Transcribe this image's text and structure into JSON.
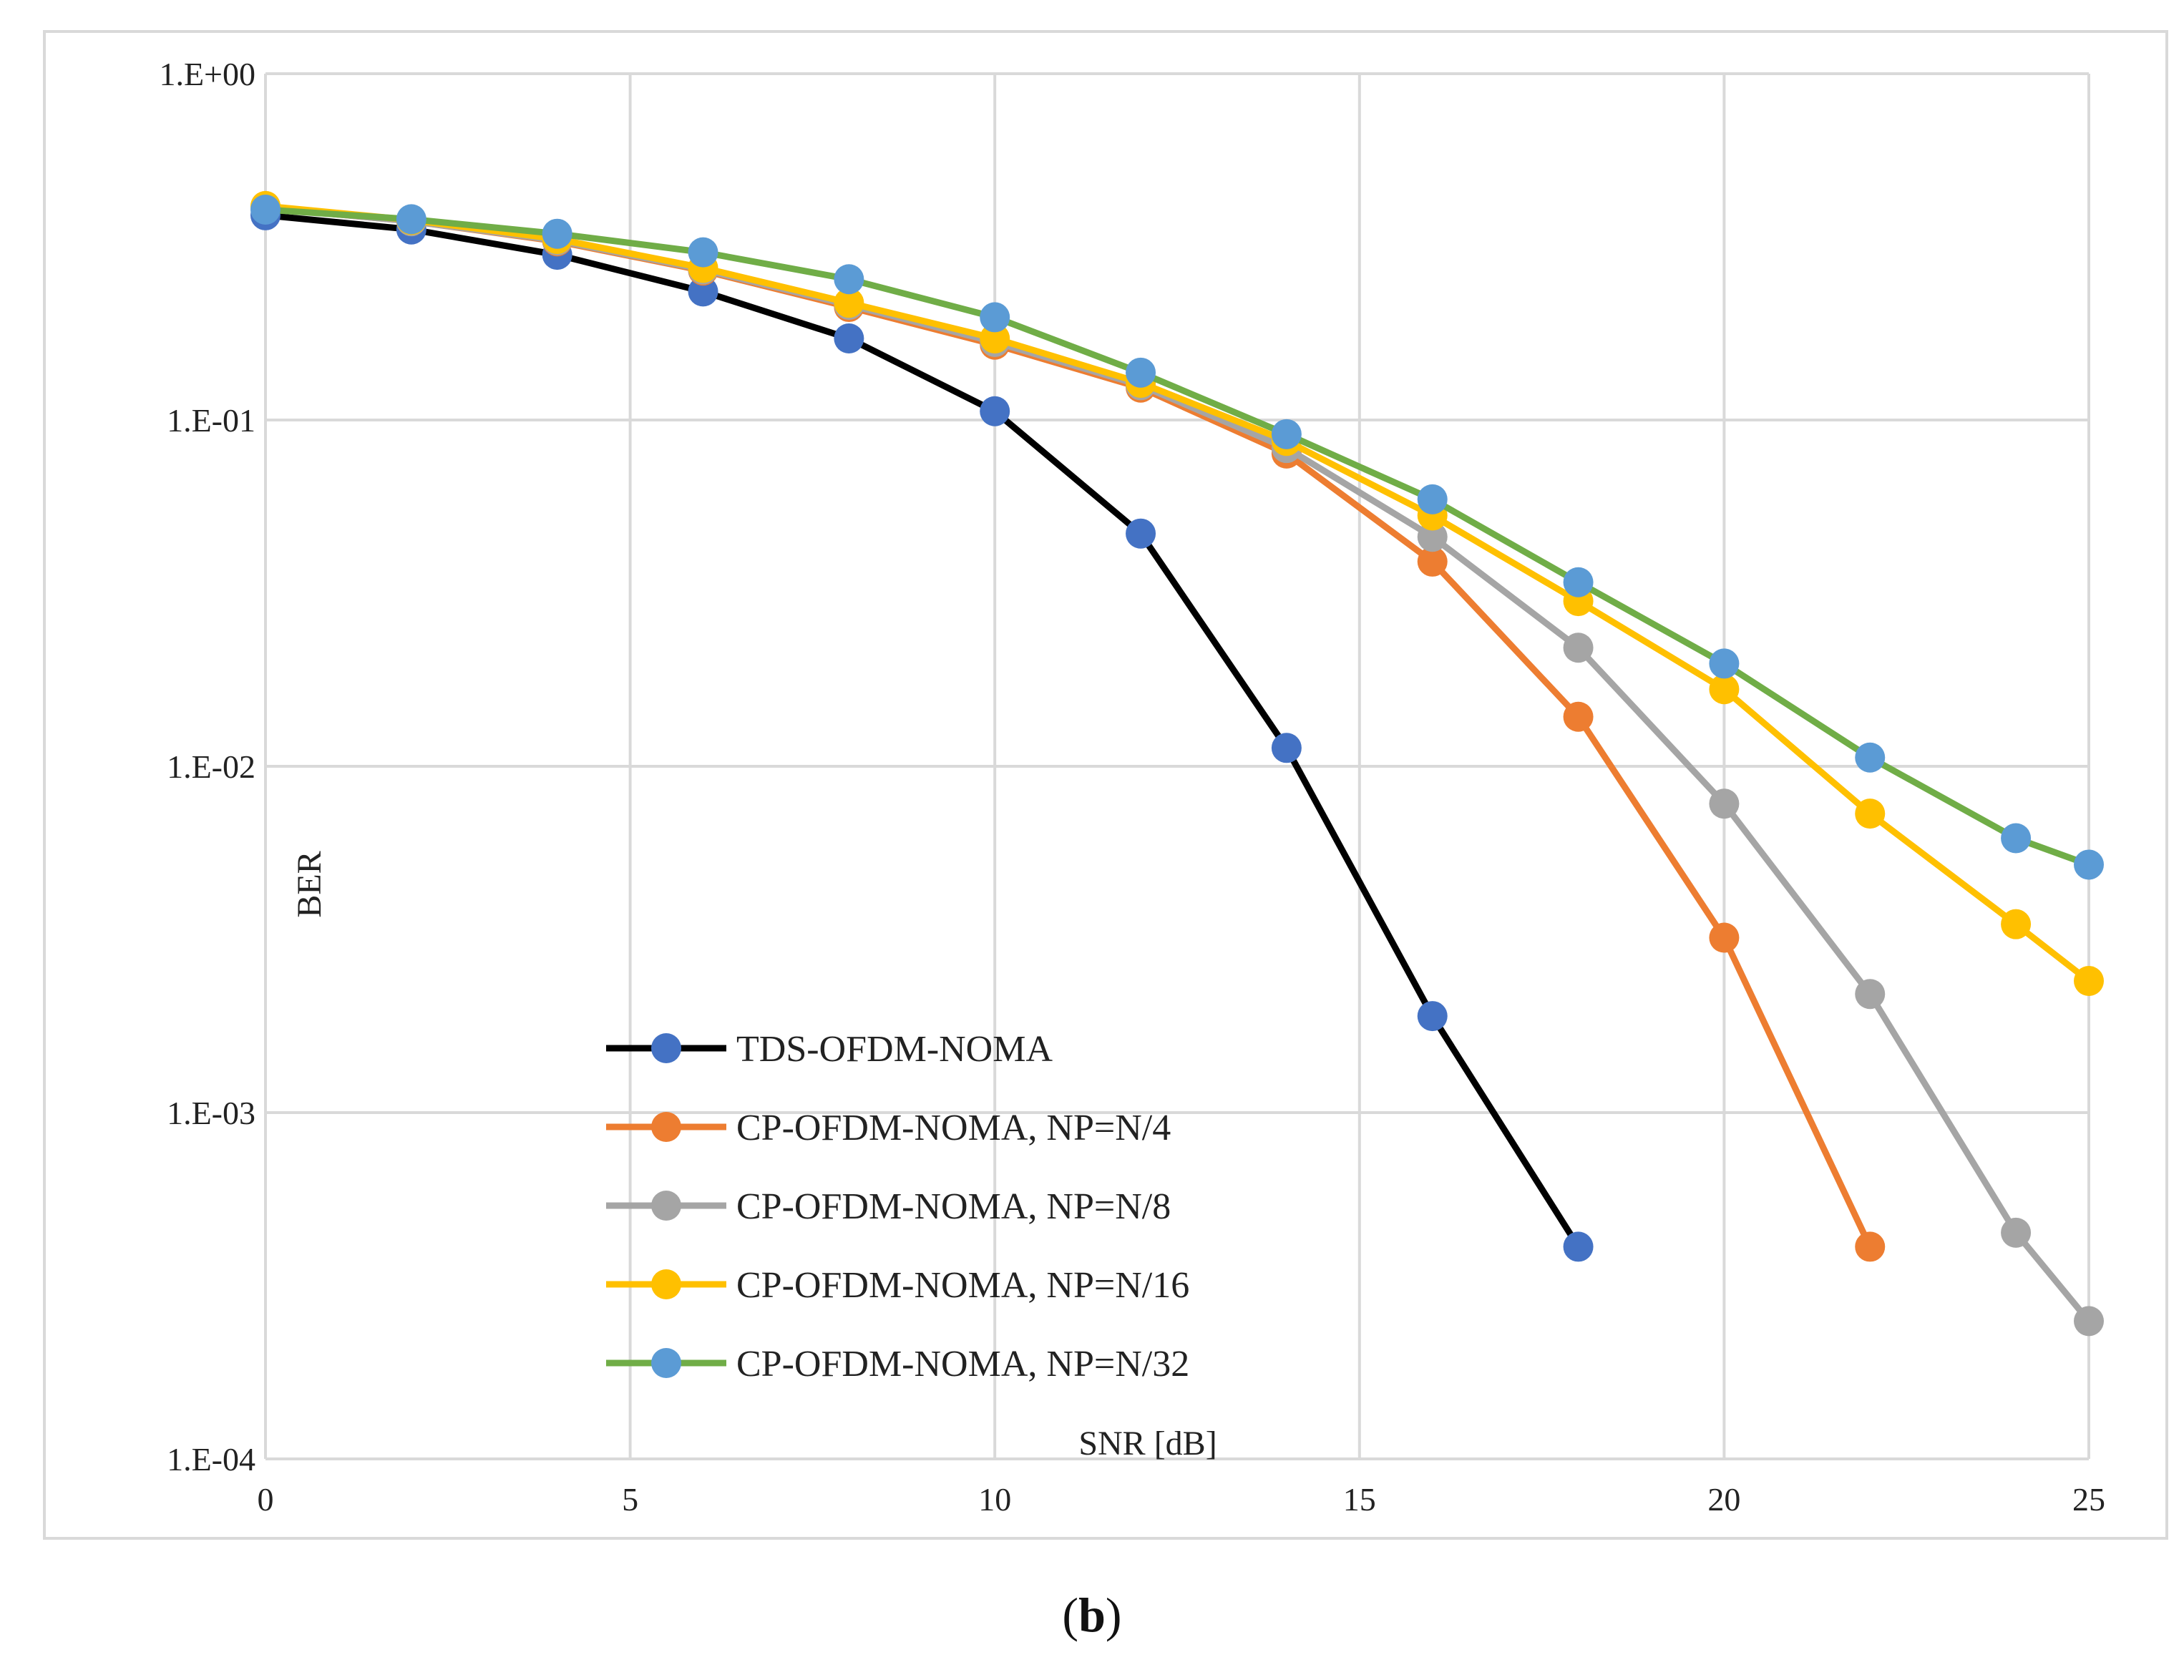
{
  "caption": {
    "open": "(",
    "letter": "b",
    "close": ")"
  },
  "chart_data": {
    "type": "line",
    "title": "",
    "xlabel": "SNR [dB]",
    "ylabel": "BER",
    "xlim": [
      0,
      25
    ],
    "ylim": [
      0.0001,
      1
    ],
    "yscale": "log",
    "grid": true,
    "legend_position": "bottom-center",
    "x_ticks": [
      0,
      5,
      10,
      15,
      20,
      25
    ],
    "x_tick_labels": [
      "0",
      "5",
      "10",
      "15",
      "20",
      "25"
    ],
    "y_ticks": [
      1,
      0.1,
      0.01,
      0.001,
      0.0001
    ],
    "y_tick_labels": [
      "1.E+00",
      "1.E-01",
      "1.E-02",
      "1.E-03",
      "1.E-04"
    ],
    "series": [
      {
        "name": "TDS-OFDM-NOMA",
        "line_color": "#000000",
        "marker_color": "#4472C4",
        "x": [
          0,
          2,
          4,
          6,
          8,
          10,
          12,
          14,
          16,
          18
        ],
        "y": [
          0.39,
          0.355,
          0.3,
          0.235,
          0.172,
          0.106,
          0.047,
          0.0113,
          0.0019,
          0.00041
        ]
      },
      {
        "name": "CP-OFDM-NOMA, NP=N/4",
        "line_color": "#ED7D31",
        "marker_color": "#ED7D31",
        "x": [
          0,
          2,
          4,
          6,
          8,
          10,
          12,
          14,
          16,
          18,
          20,
          22
        ],
        "y": [
          0.41,
          0.375,
          0.328,
          0.27,
          0.212,
          0.165,
          0.124,
          0.08,
          0.039,
          0.0139,
          0.0032,
          0.00041
        ]
      },
      {
        "name": "CP-OFDM-NOMA, NP=N/8",
        "line_color": "#A5A5A5",
        "marker_color": "#A5A5A5",
        "x": [
          0,
          2,
          4,
          6,
          8,
          10,
          12,
          14,
          16,
          18,
          20,
          22,
          24,
          25
        ],
        "y": [
          0.41,
          0.375,
          0.33,
          0.272,
          0.215,
          0.168,
          0.126,
          0.083,
          0.046,
          0.022,
          0.0078,
          0.0022,
          0.00045,
          0.00025
        ]
      },
      {
        "name": "CP-OFDM-NOMA, NP=N/16",
        "line_color": "#FFC000",
        "marker_color": "#FFC000",
        "x": [
          0,
          2,
          4,
          6,
          8,
          10,
          12,
          14,
          16,
          18,
          20,
          22,
          24,
          25
        ],
        "y": [
          0.415,
          0.378,
          0.333,
          0.275,
          0.218,
          0.172,
          0.128,
          0.087,
          0.053,
          0.03,
          0.0167,
          0.0073,
          0.0035,
          0.0024
        ]
      },
      {
        "name": "CP-OFDM-NOMA, NP=N/32",
        "line_color": "#70AD47",
        "marker_color": "#5B9BD5",
        "x": [
          0,
          2,
          4,
          6,
          8,
          10,
          12,
          14,
          16,
          18,
          20,
          22,
          24,
          25
        ],
        "y": [
          0.405,
          0.38,
          0.345,
          0.305,
          0.255,
          0.198,
          0.137,
          0.091,
          0.059,
          0.034,
          0.0198,
          0.0106,
          0.0062,
          0.0052
        ]
      }
    ]
  }
}
